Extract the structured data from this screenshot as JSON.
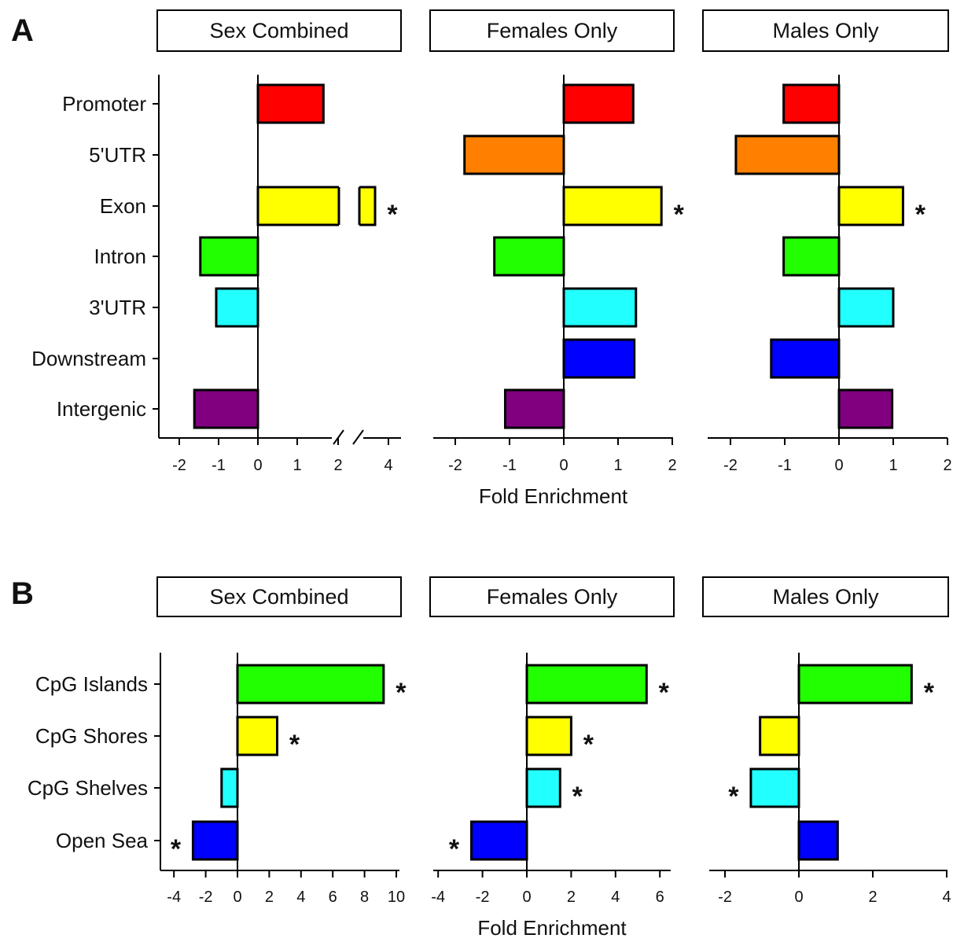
{
  "panels": [
    {
      "letter": "A"
    },
    {
      "letter": "B"
    }
  ],
  "chart_data": [
    {
      "type": "bar",
      "orientation": "horizontal",
      "panel": "A",
      "title": "Sex Combined",
      "categories": [
        "Promoter",
        "5'UTR",
        "Exon",
        "Intron",
        "3'UTR",
        "Downstream",
        "Intergenic"
      ],
      "values": [
        1.65,
        null,
        3.75,
        -1.45,
        -1.05,
        null,
        -1.6
      ],
      "significant": [
        false,
        false,
        true,
        false,
        false,
        false,
        false
      ],
      "xlim": [
        -2.5,
        4.2
      ],
      "xticks": [
        -2,
        -1,
        0,
        1,
        2,
        4
      ],
      "axis_break": "between 2 and 4",
      "xlabel": "",
      "colors": [
        "#ff0000",
        "#ff8000",
        "#ffff00",
        "#22ff00",
        "#22ffff",
        "#0000ff",
        "#800080"
      ],
      "legend": "none"
    },
    {
      "type": "bar",
      "orientation": "horizontal",
      "panel": "A",
      "title": "Females Only",
      "categories": [
        "Promoter",
        "5'UTR",
        "Exon",
        "Intron",
        "3'UTR",
        "Downstream",
        "Intergenic"
      ],
      "values": [
        1.28,
        -1.83,
        1.8,
        -1.28,
        1.33,
        1.3,
        -1.08
      ],
      "significant": [
        false,
        false,
        true,
        false,
        false,
        false,
        false
      ],
      "xlim": [
        -2.4,
        2.2
      ],
      "xticks": [
        -2,
        -1,
        0,
        1,
        2
      ],
      "xlabel": "Fold Enrichment",
      "colors": [
        "#ff0000",
        "#ff8000",
        "#ffff00",
        "#22ff00",
        "#22ffff",
        "#0000ff",
        "#800080"
      ],
      "legend": "none"
    },
    {
      "type": "bar",
      "orientation": "horizontal",
      "panel": "A",
      "title": "Males Only",
      "categories": [
        "Promoter",
        "5'UTR",
        "Exon",
        "Intron",
        "3'UTR",
        "Downstream",
        "Intergenic"
      ],
      "values": [
        -1.02,
        -1.9,
        1.18,
        -1.02,
        1.0,
        -1.25,
        0.98
      ],
      "significant": [
        false,
        false,
        true,
        false,
        false,
        false,
        false
      ],
      "xlim": [
        -2.4,
        2.1
      ],
      "xticks": [
        -2,
        -1,
        0,
        1,
        2
      ],
      "xlabel": "",
      "colors": [
        "#ff0000",
        "#ff8000",
        "#ffff00",
        "#22ff00",
        "#22ffff",
        "#0000ff",
        "#800080"
      ],
      "legend": "none"
    },
    {
      "type": "bar",
      "orientation": "horizontal",
      "panel": "B",
      "title": "Sex Combined",
      "categories": [
        "CpG Islands",
        "CpG Shores",
        "CpG Shelves",
        "Open Sea"
      ],
      "values": [
        9.2,
        2.5,
        -1.0,
        -2.8
      ],
      "significant": [
        true,
        true,
        false,
        true
      ],
      "xlim": [
        -5,
        10.3
      ],
      "xticks": [
        -4,
        -2,
        0,
        2,
        4,
        6,
        8,
        10
      ],
      "xlabel": "",
      "colors": [
        "#22ff00",
        "#ffff00",
        "#22ffff",
        "#0000ff"
      ],
      "legend": "none"
    },
    {
      "type": "bar",
      "orientation": "horizontal",
      "panel": "B",
      "title": "Females Only",
      "categories": [
        "CpG Islands",
        "CpG Shores",
        "CpG Shelves",
        "Open Sea"
      ],
      "values": [
        5.4,
        2.0,
        1.5,
        -2.5
      ],
      "significant": [
        true,
        true,
        true,
        true
      ],
      "xlim": [
        -4.4,
        6.3
      ],
      "xticks": [
        -4,
        -2,
        0,
        2,
        4,
        6
      ],
      "xlabel": "Fold Enrichment",
      "colors": [
        "#22ff00",
        "#ffff00",
        "#22ffff",
        "#0000ff"
      ],
      "legend": "none"
    },
    {
      "type": "bar",
      "orientation": "horizontal",
      "panel": "B",
      "title": "Males Only",
      "categories": [
        "CpG Islands",
        "CpG Shores",
        "CpG Shelves",
        "Open Sea"
      ],
      "values": [
        3.05,
        -1.05,
        -1.3,
        1.05
      ],
      "significant": [
        true,
        false,
        true,
        false
      ],
      "xlim": [
        -2.5,
        4.2
      ],
      "xticks": [
        -2,
        0,
        2,
        4
      ],
      "xlabel": "",
      "colors": [
        "#22ff00",
        "#ffff00",
        "#22ffff",
        "#0000ff"
      ],
      "legend": "none"
    }
  ]
}
